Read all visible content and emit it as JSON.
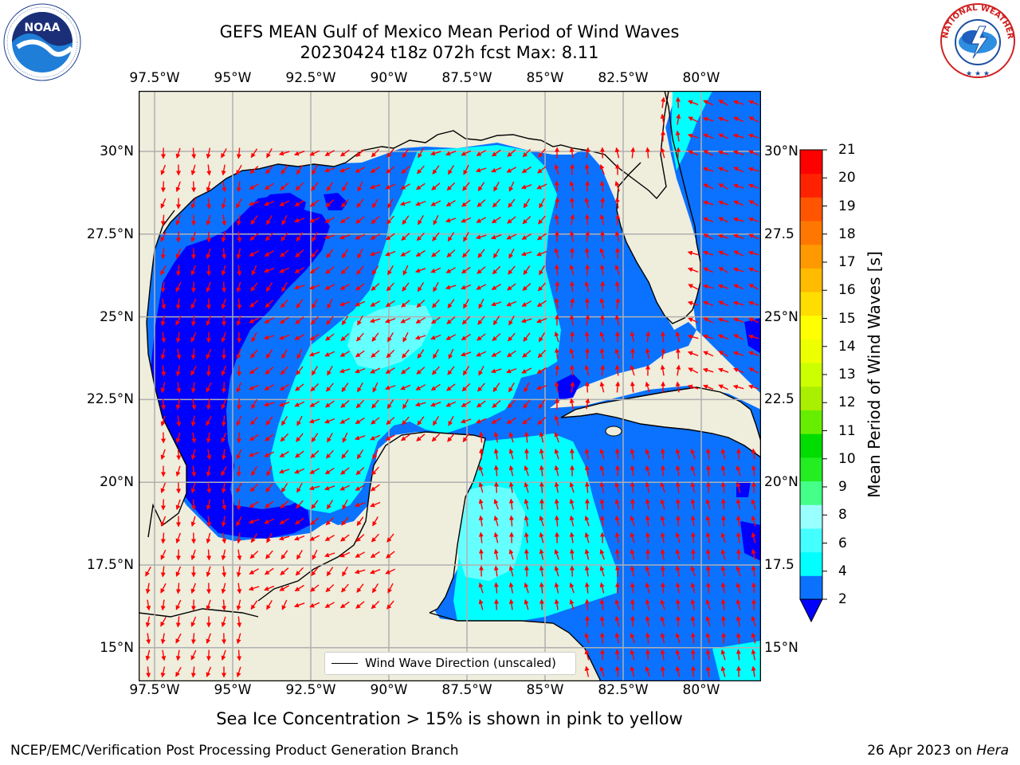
{
  "title": {
    "line1": "GEFS MEAN Gulf of Mexico Mean Period of Wind Waves",
    "line2": "20230424 t18z 072h fcst   Max: 8.11"
  },
  "map": {
    "lon_ticks": [
      "97.5°W",
      "95°W",
      "92.5°W",
      "90°W",
      "87.5°W",
      "85°W",
      "82.5°W",
      "80°W"
    ],
    "lat_ticks_left": [
      "30°N",
      "27.5°N",
      "25°N",
      "22.5°N",
      "20°N",
      "17.5°N",
      "15°N"
    ],
    "lat_ticks_right": [
      "30°N",
      "27.5",
      "25°N",
      "22.5",
      "20°N",
      "17.5",
      "15°N"
    ],
    "legend_label": "Wind Wave Direction (unscaled)"
  },
  "colorbar": {
    "title": "Mean Period of Wind Waves [s]",
    "ticks": [
      "2",
      "4",
      "6",
      "8",
      "9",
      "10",
      "11",
      "12",
      "13",
      "14",
      "15",
      "16",
      "17",
      "18",
      "19",
      "20",
      "21"
    ],
    "colors": [
      "#0a72ff",
      "#00ffff",
      "#44ffff",
      "#99ffff",
      "#44ff88",
      "#22ee22",
      "#00dd00",
      "#66ee00",
      "#aaee00",
      "#ccff00",
      "#eeff00",
      "#ffff00",
      "#ffdd00",
      "#ffbb00",
      "#ff9900",
      "#ff7700",
      "#ff5500",
      "#ff2200",
      "#ff0000"
    ],
    "under_color": "#0000ff"
  },
  "colors": {
    "land": "#efeddc",
    "deep_blue": "#0000ff",
    "mid_blue": "#0a72ff",
    "cyan": "#00ffff",
    "light_cyan": "#66ffff",
    "arrow": "#ff0000"
  },
  "note": "Sea Ice Concentration > 15% is shown in pink to yellow",
  "footer": {
    "left": "NCEP/EMC/Verification Post Processing Product Generation Branch",
    "right_date": "26 Apr 2023 on",
    "right_host": "Hera"
  },
  "logos": {
    "noaa": "NOAA",
    "nws": "NATIONAL WEATHER SERVICE"
  }
}
